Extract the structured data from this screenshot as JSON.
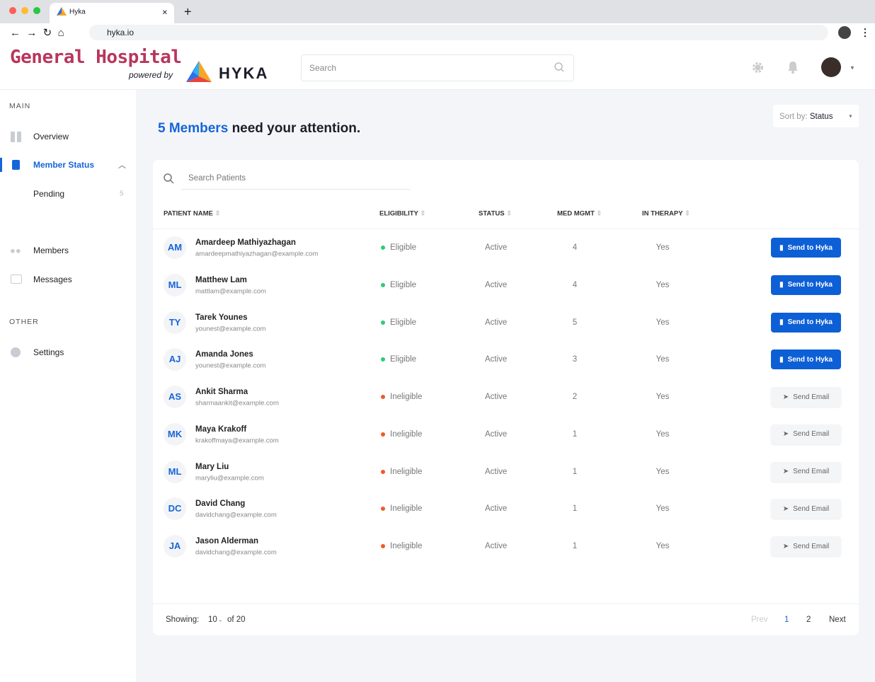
{
  "browser": {
    "tab_title": "Hyka",
    "url": "hyka.io"
  },
  "header": {
    "brand": "General Hospital",
    "powered_by": "powered by",
    "logo": "HYKA",
    "search_placeholder": "Search"
  },
  "sidebar": {
    "main_label": "MAIN",
    "items": [
      {
        "label": "Overview"
      },
      {
        "label": "Member Status"
      },
      {
        "label": "Pending",
        "count": 5
      },
      {
        "label": "Members"
      },
      {
        "label": "Messages"
      }
    ],
    "other_label": "OTHER",
    "other_items": [
      {
        "label": "Settings"
      }
    ]
  },
  "main": {
    "headline_count": "5 Members",
    "headline_rest": "need your attention.",
    "sort_label": "Sort by:",
    "sort_value": "Status"
  },
  "table": {
    "search_placeholder": "Search Patients",
    "columns": [
      "PATIENT NAME",
      "ELIGIBILITY",
      "STATUS",
      "MED MGMT",
      "IN THERAPY"
    ],
    "rows": [
      {
        "initials": "AM",
        "name": "Amardeep Mathiyazhagan",
        "email": "amardeepmathiyazhagan@example.com",
        "eligibility": "Eligible",
        "dot_color": "#2ecc71",
        "status": "Active",
        "med_mgmt": 4,
        "therapy": "Yes",
        "action": "Send to Hyka",
        "action_color": "#0d5fd6"
      },
      {
        "initials": "ML",
        "name": "Matthew Lam",
        "email": "mattlam@example.com",
        "eligibility": "Eligible",
        "dot_color": "#2ecc71",
        "status": "Active",
        "med_mgmt": 4,
        "therapy": "Yes",
        "action": "Send to Hyka",
        "action_color": "#0d5fd6"
      },
      {
        "initials": "TY",
        "name": "Tarek Younes",
        "email": "younest@example.com",
        "eligibility": "Eligible",
        "dot_color": "#2ecc71",
        "status": "Active",
        "med_mgmt": 5,
        "therapy": "Yes",
        "action": "Send to Hyka",
        "action_color": "#0d5fd6"
      },
      {
        "initials": "AJ",
        "name": "Amanda Jones",
        "email": "younest@example.com",
        "eligibility": "Eligible",
        "dot_color": "#2ecc71",
        "status": "Active",
        "med_mgmt": 3,
        "therapy": "Yes",
        "action": "Send to Hyka",
        "action_color": "#0d5fd6"
      },
      {
        "initials": "AS",
        "name": "Ankit Sharma",
        "email": "sharmaankit@example.com",
        "eligibility": "Ineligible",
        "dot_color": "#f05a28",
        "status": "Active",
        "med_mgmt": 2,
        "therapy": "Yes",
        "action": "Send Email",
        "action_color": "#f4f5f7"
      },
      {
        "initials": "MK",
        "name": "Maya Krakoff",
        "email": "krakoffmaya@example.com",
        "eligibility": "Ineligible",
        "dot_color": "#f05a28",
        "status": "Active",
        "med_mgmt": 1,
        "therapy": "Yes",
        "action": "Send Email",
        "action_color": "#f4f5f7"
      },
      {
        "initials": "ML",
        "name": "Mary Liu",
        "email": "maryliu@example.com",
        "eligibility": "Ineligible",
        "dot_color": "#f05a28",
        "status": "Active",
        "med_mgmt": 1,
        "therapy": "Yes",
        "action": "Send Email",
        "action_color": "#f4f5f7"
      },
      {
        "initials": "DC",
        "name": "David Chang",
        "email": "davidchang@example.com",
        "eligibility": "Ineligible",
        "dot_color": "#f05a28",
        "status": "Active",
        "med_mgmt": 1,
        "therapy": "Yes",
        "action": "Send Email",
        "action_color": "#f4f5f7"
      },
      {
        "initials": "JA",
        "name": "Jason Alderman",
        "email": "davidchang@example.com",
        "eligibility": "Ineligible",
        "dot_color": "#f05a28",
        "status": "Active",
        "med_mgmt": 1,
        "therapy": "Yes",
        "action": "Send Email",
        "action_color": "#f4f5f7"
      }
    ]
  },
  "pagination": {
    "showing_label": "Showing:",
    "page_size": "10",
    "total": "of 20",
    "prev": "Prev",
    "pages": [
      "1",
      "2"
    ],
    "next": "Next"
  }
}
